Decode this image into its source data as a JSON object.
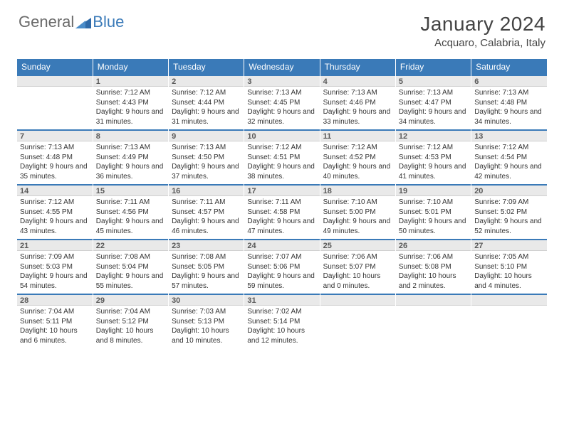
{
  "logo": {
    "text1": "General",
    "text2": "Blue"
  },
  "title": {
    "month": "January 2024",
    "location": "Acquaro, Calabria, Italy"
  },
  "colors": {
    "header_bg": "#3a7ab8",
    "header_text": "#ffffff",
    "daynum_bg": "#e9e9e9",
    "daynum_border_top": "#3a7ab8",
    "text": "#333333"
  },
  "fonts": {
    "title_size": 28,
    "location_size": 15,
    "header_cell_size": 12,
    "daynum_size": 11,
    "body_size": 10
  },
  "dayHeaders": [
    "Sunday",
    "Monday",
    "Tuesday",
    "Wednesday",
    "Thursday",
    "Friday",
    "Saturday"
  ],
  "weeks": [
    [
      {
        "n": "",
        "sunrise": "",
        "sunset": "",
        "daylight": ""
      },
      {
        "n": "1",
        "sunrise": "Sunrise: 7:12 AM",
        "sunset": "Sunset: 4:43 PM",
        "daylight": "Daylight: 9 hours and 31 minutes."
      },
      {
        "n": "2",
        "sunrise": "Sunrise: 7:12 AM",
        "sunset": "Sunset: 4:44 PM",
        "daylight": "Daylight: 9 hours and 31 minutes."
      },
      {
        "n": "3",
        "sunrise": "Sunrise: 7:13 AM",
        "sunset": "Sunset: 4:45 PM",
        "daylight": "Daylight: 9 hours and 32 minutes."
      },
      {
        "n": "4",
        "sunrise": "Sunrise: 7:13 AM",
        "sunset": "Sunset: 4:46 PM",
        "daylight": "Daylight: 9 hours and 33 minutes."
      },
      {
        "n": "5",
        "sunrise": "Sunrise: 7:13 AM",
        "sunset": "Sunset: 4:47 PM",
        "daylight": "Daylight: 9 hours and 34 minutes."
      },
      {
        "n": "6",
        "sunrise": "Sunrise: 7:13 AM",
        "sunset": "Sunset: 4:48 PM",
        "daylight": "Daylight: 9 hours and 34 minutes."
      }
    ],
    [
      {
        "n": "7",
        "sunrise": "Sunrise: 7:13 AM",
        "sunset": "Sunset: 4:48 PM",
        "daylight": "Daylight: 9 hours and 35 minutes."
      },
      {
        "n": "8",
        "sunrise": "Sunrise: 7:13 AM",
        "sunset": "Sunset: 4:49 PM",
        "daylight": "Daylight: 9 hours and 36 minutes."
      },
      {
        "n": "9",
        "sunrise": "Sunrise: 7:13 AM",
        "sunset": "Sunset: 4:50 PM",
        "daylight": "Daylight: 9 hours and 37 minutes."
      },
      {
        "n": "10",
        "sunrise": "Sunrise: 7:12 AM",
        "sunset": "Sunset: 4:51 PM",
        "daylight": "Daylight: 9 hours and 38 minutes."
      },
      {
        "n": "11",
        "sunrise": "Sunrise: 7:12 AM",
        "sunset": "Sunset: 4:52 PM",
        "daylight": "Daylight: 9 hours and 40 minutes."
      },
      {
        "n": "12",
        "sunrise": "Sunrise: 7:12 AM",
        "sunset": "Sunset: 4:53 PM",
        "daylight": "Daylight: 9 hours and 41 minutes."
      },
      {
        "n": "13",
        "sunrise": "Sunrise: 7:12 AM",
        "sunset": "Sunset: 4:54 PM",
        "daylight": "Daylight: 9 hours and 42 minutes."
      }
    ],
    [
      {
        "n": "14",
        "sunrise": "Sunrise: 7:12 AM",
        "sunset": "Sunset: 4:55 PM",
        "daylight": "Daylight: 9 hours and 43 minutes."
      },
      {
        "n": "15",
        "sunrise": "Sunrise: 7:11 AM",
        "sunset": "Sunset: 4:56 PM",
        "daylight": "Daylight: 9 hours and 45 minutes."
      },
      {
        "n": "16",
        "sunrise": "Sunrise: 7:11 AM",
        "sunset": "Sunset: 4:57 PM",
        "daylight": "Daylight: 9 hours and 46 minutes."
      },
      {
        "n": "17",
        "sunrise": "Sunrise: 7:11 AM",
        "sunset": "Sunset: 4:58 PM",
        "daylight": "Daylight: 9 hours and 47 minutes."
      },
      {
        "n": "18",
        "sunrise": "Sunrise: 7:10 AM",
        "sunset": "Sunset: 5:00 PM",
        "daylight": "Daylight: 9 hours and 49 minutes."
      },
      {
        "n": "19",
        "sunrise": "Sunrise: 7:10 AM",
        "sunset": "Sunset: 5:01 PM",
        "daylight": "Daylight: 9 hours and 50 minutes."
      },
      {
        "n": "20",
        "sunrise": "Sunrise: 7:09 AM",
        "sunset": "Sunset: 5:02 PM",
        "daylight": "Daylight: 9 hours and 52 minutes."
      }
    ],
    [
      {
        "n": "21",
        "sunrise": "Sunrise: 7:09 AM",
        "sunset": "Sunset: 5:03 PM",
        "daylight": "Daylight: 9 hours and 54 minutes."
      },
      {
        "n": "22",
        "sunrise": "Sunrise: 7:08 AM",
        "sunset": "Sunset: 5:04 PM",
        "daylight": "Daylight: 9 hours and 55 minutes."
      },
      {
        "n": "23",
        "sunrise": "Sunrise: 7:08 AM",
        "sunset": "Sunset: 5:05 PM",
        "daylight": "Daylight: 9 hours and 57 minutes."
      },
      {
        "n": "24",
        "sunrise": "Sunrise: 7:07 AM",
        "sunset": "Sunset: 5:06 PM",
        "daylight": "Daylight: 9 hours and 59 minutes."
      },
      {
        "n": "25",
        "sunrise": "Sunrise: 7:06 AM",
        "sunset": "Sunset: 5:07 PM",
        "daylight": "Daylight: 10 hours and 0 minutes."
      },
      {
        "n": "26",
        "sunrise": "Sunrise: 7:06 AM",
        "sunset": "Sunset: 5:08 PM",
        "daylight": "Daylight: 10 hours and 2 minutes."
      },
      {
        "n": "27",
        "sunrise": "Sunrise: 7:05 AM",
        "sunset": "Sunset: 5:10 PM",
        "daylight": "Daylight: 10 hours and 4 minutes."
      }
    ],
    [
      {
        "n": "28",
        "sunrise": "Sunrise: 7:04 AM",
        "sunset": "Sunset: 5:11 PM",
        "daylight": "Daylight: 10 hours and 6 minutes."
      },
      {
        "n": "29",
        "sunrise": "Sunrise: 7:04 AM",
        "sunset": "Sunset: 5:12 PM",
        "daylight": "Daylight: 10 hours and 8 minutes."
      },
      {
        "n": "30",
        "sunrise": "Sunrise: 7:03 AM",
        "sunset": "Sunset: 5:13 PM",
        "daylight": "Daylight: 10 hours and 10 minutes."
      },
      {
        "n": "31",
        "sunrise": "Sunrise: 7:02 AM",
        "sunset": "Sunset: 5:14 PM",
        "daylight": "Daylight: 10 hours and 12 minutes."
      },
      {
        "n": "",
        "sunrise": "",
        "sunset": "",
        "daylight": ""
      },
      {
        "n": "",
        "sunrise": "",
        "sunset": "",
        "daylight": ""
      },
      {
        "n": "",
        "sunrise": "",
        "sunset": "",
        "daylight": ""
      }
    ]
  ]
}
